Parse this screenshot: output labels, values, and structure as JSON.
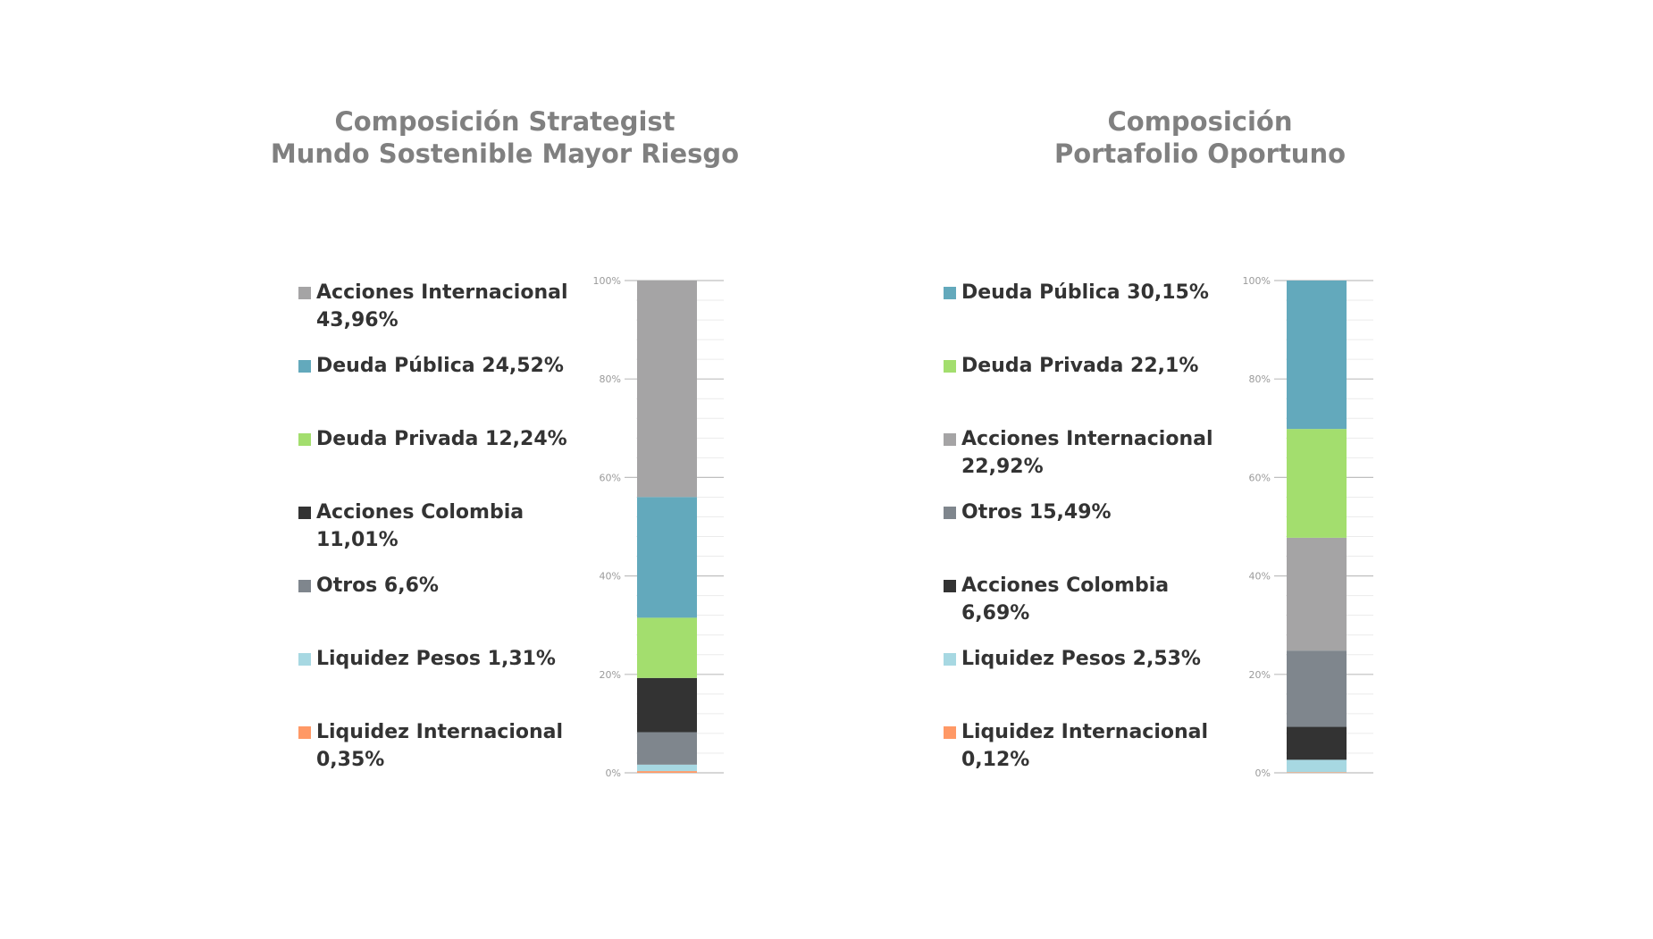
{
  "chart_data": [
    {
      "type": "bar",
      "stacked": true,
      "title_lines": [
        "Composición Strategist",
        "Mundo Sostenible Mayor Riesgo"
      ],
      "ylim": [
        0,
        100
      ],
      "y_ticks": [
        "0%",
        "20%",
        "40%",
        "60%",
        "80%",
        "100%"
      ],
      "grid": true,
      "legend_position": "left",
      "series": [
        {
          "name": "Liquidez Internacional",
          "value": 0.35,
          "label": "Liquidez Internacional 0,35%",
          "color": "#FF9966"
        },
        {
          "name": "Liquidez Pesos",
          "value": 1.31,
          "label": "Liquidez Pesos 1,31%",
          "color": "#A7D8E2"
        },
        {
          "name": "Otros",
          "value": 6.6,
          "label": "Otros 6,6%",
          "color": "#7F868D"
        },
        {
          "name": "Acciones Colombia",
          "value": 11.01,
          "label": "Acciones Colombia 11,01%",
          "color": "#333333"
        },
        {
          "name": "Deuda Privada",
          "value": 12.24,
          "label": "Deuda Privada 12,24%",
          "color": "#A3DE6E"
        },
        {
          "name": "Deuda Pública",
          "value": 24.52,
          "label": "Deuda Pública 24,52%",
          "color": "#63A9BC"
        },
        {
          "name": "Acciones Internacional",
          "value": 43.96,
          "label": "Acciones Internacional 43,96%",
          "color": "#A5A4A5"
        }
      ],
      "legend_order": [
        6,
        5,
        4,
        3,
        2,
        1,
        0
      ]
    },
    {
      "type": "bar",
      "stacked": true,
      "title_lines": [
        "Composición",
        "Portafolio Oportuno"
      ],
      "ylim": [
        0,
        100
      ],
      "y_ticks": [
        "0%",
        "20%",
        "40%",
        "60%",
        "80%",
        "100%"
      ],
      "grid": true,
      "legend_position": "left",
      "series": [
        {
          "name": "Liquidez Internacional",
          "value": 0.12,
          "label": "Liquidez Internacional 0,12%",
          "color": "#FF9966"
        },
        {
          "name": "Liquidez Pesos",
          "value": 2.53,
          "label": "Liquidez Pesos 2,53%",
          "color": "#A7D8E2"
        },
        {
          "name": "Acciones Colombia",
          "value": 6.69,
          "label": "Acciones Colombia 6,69%",
          "color": "#333333"
        },
        {
          "name": "Otros",
          "value": 15.49,
          "label": "Otros 15,49%",
          "color": "#7F868D"
        },
        {
          "name": "Acciones Internacional",
          "value": 22.92,
          "label": "Acciones Internacional 22,92%",
          "color": "#A5A4A5"
        },
        {
          "name": "Deuda Privada",
          "value": 22.1,
          "label": "Deuda Privada 22,1%",
          "color": "#A3DE6E"
        },
        {
          "name": "Deuda Pública",
          "value": 30.15,
          "label": "Deuda Pública 30,15%",
          "color": "#63A9BC"
        }
      ],
      "legend_order": [
        6,
        5,
        4,
        3,
        2,
        1,
        0
      ]
    }
  ]
}
